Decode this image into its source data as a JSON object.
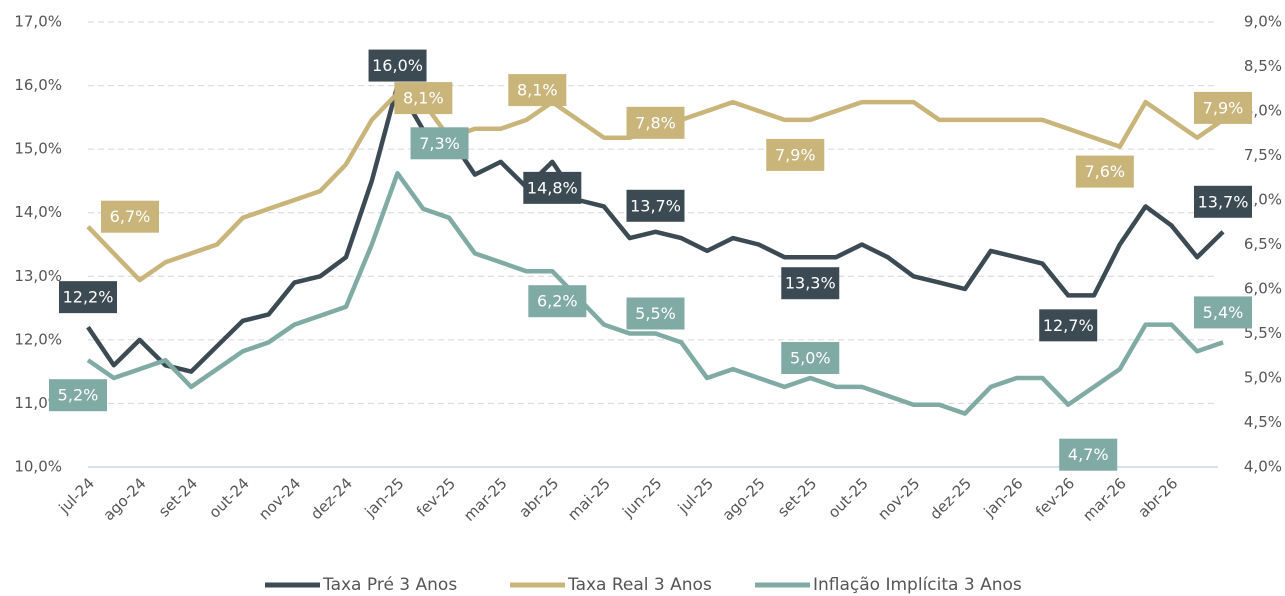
{
  "chart_data": {
    "type": "line",
    "categories": [
      "jul-24",
      null,
      "ago-24",
      null,
      "set-24",
      null,
      "out-24",
      null,
      "nov-24",
      null,
      "dez-24",
      null,
      "jan-25",
      null,
      "fev-25",
      null,
      "mar-25",
      null,
      "abr-25",
      null,
      "mai-25",
      null,
      "jun-25",
      null,
      "jul-25",
      null,
      "ago-25",
      null,
      "set-25",
      null,
      "out-25",
      null,
      "nov-25",
      null,
      "dez-25",
      null,
      "jan-26",
      null,
      "fev-26",
      null,
      "mar-26",
      null,
      "abr-26",
      null,
      null
    ],
    "ylim": [
      10,
      17
    ],
    "yticks": [
      {
        "value": 10,
        "label": "10,0%"
      },
      {
        "value": 11,
        "label": "11,0%"
      },
      {
        "value": 12,
        "label": "12,0%"
      },
      {
        "value": 13,
        "label": "13,0%"
      },
      {
        "value": 14,
        "label": "14,0%"
      },
      {
        "value": 15,
        "label": "15,0%"
      },
      {
        "value": 16,
        "label": "16,0%"
      },
      {
        "value": 17,
        "label": "17,0%"
      }
    ],
    "y2lim": [
      4,
      9
    ],
    "y2ticks": [
      {
        "value": 4,
        "label": "4,0%"
      },
      {
        "value": 4.5,
        "label": "4,5%"
      },
      {
        "value": 5,
        "label": "5,0%"
      },
      {
        "value": 5.5,
        "label": "5,5%"
      },
      {
        "value": 6,
        "label": "6,0%"
      },
      {
        "value": 6.5,
        "label": "6,5%"
      },
      {
        "value": 7,
        "label": "7,0%"
      },
      {
        "value": 7.5,
        "label": "7,5%"
      },
      {
        "value": 8,
        "label": "8,0%"
      },
      {
        "value": 8.5,
        "label": "8,5%"
      },
      {
        "value": 9,
        "label": "9,0%"
      }
    ],
    "grid": true,
    "legend": "bottom",
    "series": [
      {
        "name": "Taxa Pré 3 Anos",
        "color": "#3c4b53",
        "axis": "y",
        "values": [
          12.2,
          11.6,
          12.0,
          11.6,
          11.5,
          11.9,
          12.3,
          12.4,
          12.9,
          13.0,
          13.3,
          14.5,
          16.0,
          15.3,
          15.2,
          14.6,
          14.8,
          14.4,
          14.8,
          14.2,
          14.1,
          13.6,
          13.7,
          13.6,
          13.4,
          13.6,
          13.5,
          13.3,
          13.3,
          13.3,
          13.5,
          13.3,
          13.0,
          12.9,
          12.8,
          13.4,
          13.3,
          13.2,
          12.7,
          12.7,
          13.5,
          14.1,
          13.8,
          13.3,
          13.7
        ],
        "value_labels": [
          "12,2%",
          null,
          null,
          null,
          null,
          null,
          null,
          null,
          null,
          null,
          null,
          null,
          "16,0%",
          null,
          null,
          null,
          null,
          null,
          "14,8%",
          null,
          null,
          null,
          "13,7%",
          null,
          null,
          null,
          null,
          null,
          "13,3%",
          null,
          null,
          null,
          null,
          null,
          null,
          null,
          null,
          null,
          "12,7%",
          null,
          null,
          null,
          null,
          null,
          "13,7%"
        ]
      },
      {
        "name": "Taxa Real 3 Anos",
        "color": "#c9b47a",
        "axis": "y2",
        "values": [
          6.7,
          6.4,
          6.1,
          6.3,
          6.4,
          6.5,
          6.8,
          6.9,
          7.0,
          7.1,
          7.4,
          7.9,
          8.2,
          8.1,
          7.7,
          7.8,
          7.8,
          7.9,
          8.1,
          7.9,
          7.7,
          7.7,
          7.8,
          7.9,
          8.0,
          8.1,
          8.0,
          7.9,
          7.9,
          8.0,
          8.1,
          8.1,
          8.1,
          7.9,
          7.9,
          7.9,
          7.9,
          7.9,
          7.8,
          7.7,
          7.6,
          8.1,
          7.9,
          7.7,
          7.9
        ],
        "value_labels": [
          "6,7%",
          null,
          null,
          null,
          null,
          null,
          null,
          null,
          null,
          null,
          null,
          null,
          null,
          "8,1%",
          null,
          null,
          null,
          null,
          "8,1%",
          null,
          null,
          null,
          "7,8%",
          null,
          null,
          null,
          null,
          null,
          "7,9%",
          null,
          null,
          null,
          null,
          null,
          null,
          null,
          null,
          null,
          null,
          null,
          "7,6%",
          null,
          null,
          null,
          "7,9%"
        ]
      },
      {
        "name": "Inflação Implícita 3 Anos",
        "color": "#80aaa4",
        "axis": "y2",
        "values": [
          5.2,
          5.0,
          5.1,
          5.2,
          4.9,
          5.1,
          5.3,
          5.4,
          5.6,
          5.7,
          5.8,
          6.5,
          7.3,
          6.9,
          6.8,
          6.4,
          6.3,
          6.2,
          6.2,
          5.9,
          5.6,
          5.5,
          5.5,
          5.4,
          5.0,
          5.1,
          5.0,
          4.9,
          5.0,
          4.9,
          4.9,
          4.8,
          4.7,
          4.7,
          4.6,
          4.9,
          5.0,
          5.0,
          4.7,
          4.9,
          5.1,
          5.6,
          5.6,
          5.3,
          5.4
        ],
        "value_labels": [
          "5,2%",
          null,
          null,
          null,
          null,
          null,
          null,
          null,
          null,
          null,
          null,
          null,
          "7,3%",
          null,
          null,
          null,
          null,
          null,
          "6,2%",
          null,
          null,
          null,
          "5,5%",
          null,
          null,
          null,
          null,
          null,
          "5,0%",
          null,
          null,
          null,
          null,
          null,
          null,
          null,
          null,
          null,
          "4,7%",
          null,
          null,
          null,
          null,
          null,
          "5,4%"
        ]
      }
    ]
  }
}
